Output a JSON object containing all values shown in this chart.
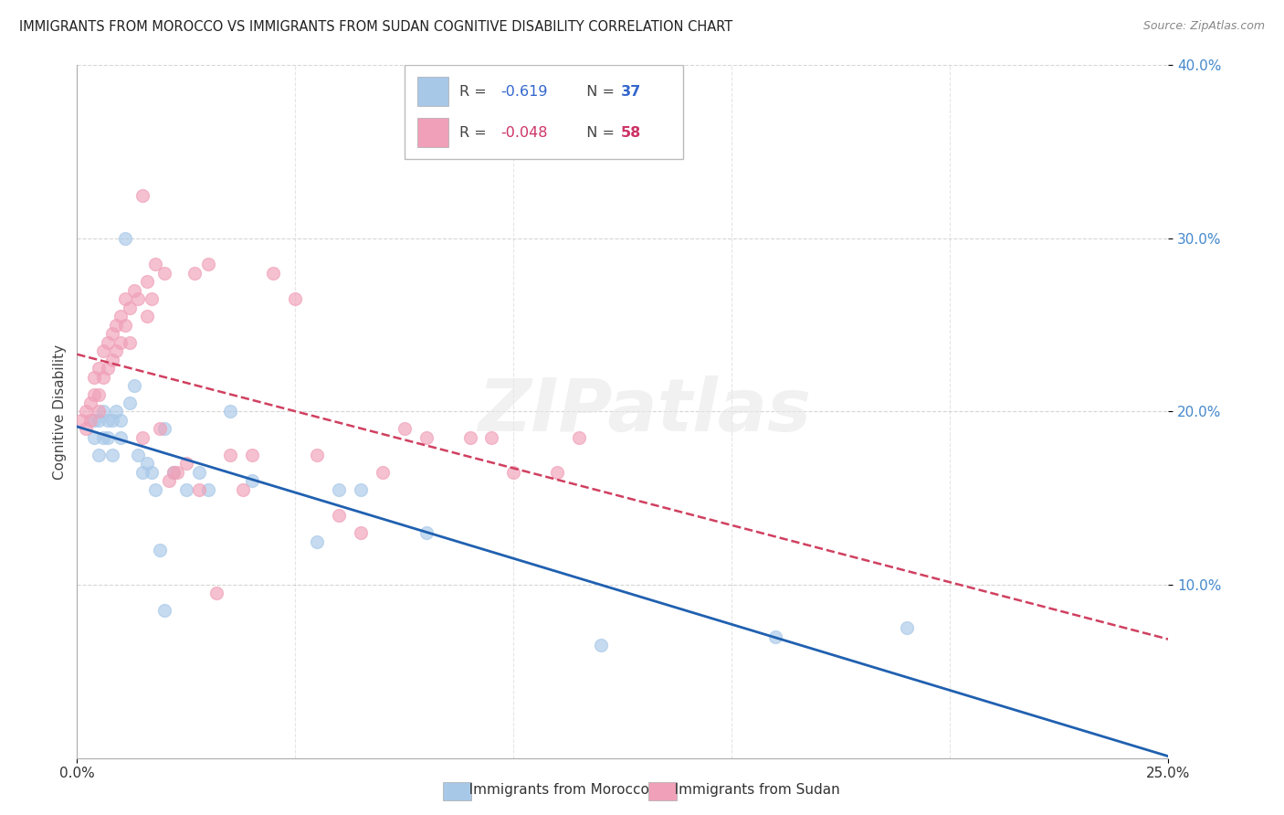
{
  "title": "IMMIGRANTS FROM MOROCCO VS IMMIGRANTS FROM SUDAN COGNITIVE DISABILITY CORRELATION CHART",
  "source": "Source: ZipAtlas.com",
  "ylabel": "Cognitive Disability",
  "xlim": [
    0.0,
    0.25
  ],
  "ylim": [
    0.0,
    0.4
  ],
  "xtick_positions": [
    0.0,
    0.25
  ],
  "xtick_labels": [
    "0.0%",
    "25.0%"
  ],
  "ytick_positions": [
    0.1,
    0.2,
    0.3,
    0.4
  ],
  "ytick_labels": [
    "10.0%",
    "20.0%",
    "30.0%",
    "40.0%"
  ],
  "morocco_color": "#a8c8e8",
  "sudan_color": "#f0a0b8",
  "morocco_line_color": "#2060b0",
  "sudan_line_color": "#d04060",
  "morocco_R": -0.619,
  "morocco_N": 37,
  "sudan_R": -0.048,
  "sudan_N": 58,
  "legend_label_morocco": "Immigrants from Morocco",
  "legend_label_sudan": "Immigrants from Sudan",
  "background_color": "#ffffff",
  "watermark": "ZIPatlas",
  "morocco_x": [
    0.004,
    0.004,
    0.005,
    0.005,
    0.006,
    0.006,
    0.007,
    0.007,
    0.008,
    0.008,
    0.009,
    0.01,
    0.01,
    0.011,
    0.012,
    0.013,
    0.014,
    0.015,
    0.016,
    0.017,
    0.018,
    0.019,
    0.02,
    0.02,
    0.022,
    0.025,
    0.028,
    0.03,
    0.035,
    0.04,
    0.055,
    0.06,
    0.065,
    0.08,
    0.12,
    0.16,
    0.19
  ],
  "morocco_y": [
    0.195,
    0.185,
    0.195,
    0.175,
    0.2,
    0.185,
    0.195,
    0.185,
    0.175,
    0.195,
    0.2,
    0.195,
    0.185,
    0.3,
    0.205,
    0.215,
    0.175,
    0.165,
    0.17,
    0.165,
    0.155,
    0.12,
    0.085,
    0.19,
    0.165,
    0.155,
    0.165,
    0.155,
    0.2,
    0.16,
    0.125,
    0.155,
    0.155,
    0.13,
    0.065,
    0.07,
    0.075
  ],
  "sudan_x": [
    0.001,
    0.002,
    0.002,
    0.003,
    0.003,
    0.004,
    0.004,
    0.005,
    0.005,
    0.005,
    0.006,
    0.006,
    0.007,
    0.007,
    0.008,
    0.008,
    0.009,
    0.009,
    0.01,
    0.01,
    0.011,
    0.011,
    0.012,
    0.012,
    0.013,
    0.014,
    0.015,
    0.015,
    0.016,
    0.016,
    0.017,
    0.018,
    0.019,
    0.02,
    0.021,
    0.022,
    0.023,
    0.025,
    0.027,
    0.028,
    0.03,
    0.032,
    0.035,
    0.038,
    0.04,
    0.045,
    0.05,
    0.055,
    0.06,
    0.065,
    0.07,
    0.075,
    0.08,
    0.09,
    0.095,
    0.1,
    0.11,
    0.115
  ],
  "sudan_y": [
    0.195,
    0.2,
    0.19,
    0.205,
    0.195,
    0.22,
    0.21,
    0.225,
    0.21,
    0.2,
    0.235,
    0.22,
    0.24,
    0.225,
    0.245,
    0.23,
    0.25,
    0.235,
    0.255,
    0.24,
    0.265,
    0.25,
    0.26,
    0.24,
    0.27,
    0.265,
    0.325,
    0.185,
    0.275,
    0.255,
    0.265,
    0.285,
    0.19,
    0.28,
    0.16,
    0.165,
    0.165,
    0.17,
    0.28,
    0.155,
    0.285,
    0.095,
    0.175,
    0.155,
    0.175,
    0.28,
    0.265,
    0.175,
    0.14,
    0.13,
    0.165,
    0.19,
    0.185,
    0.185,
    0.185,
    0.165,
    0.165,
    0.185
  ]
}
